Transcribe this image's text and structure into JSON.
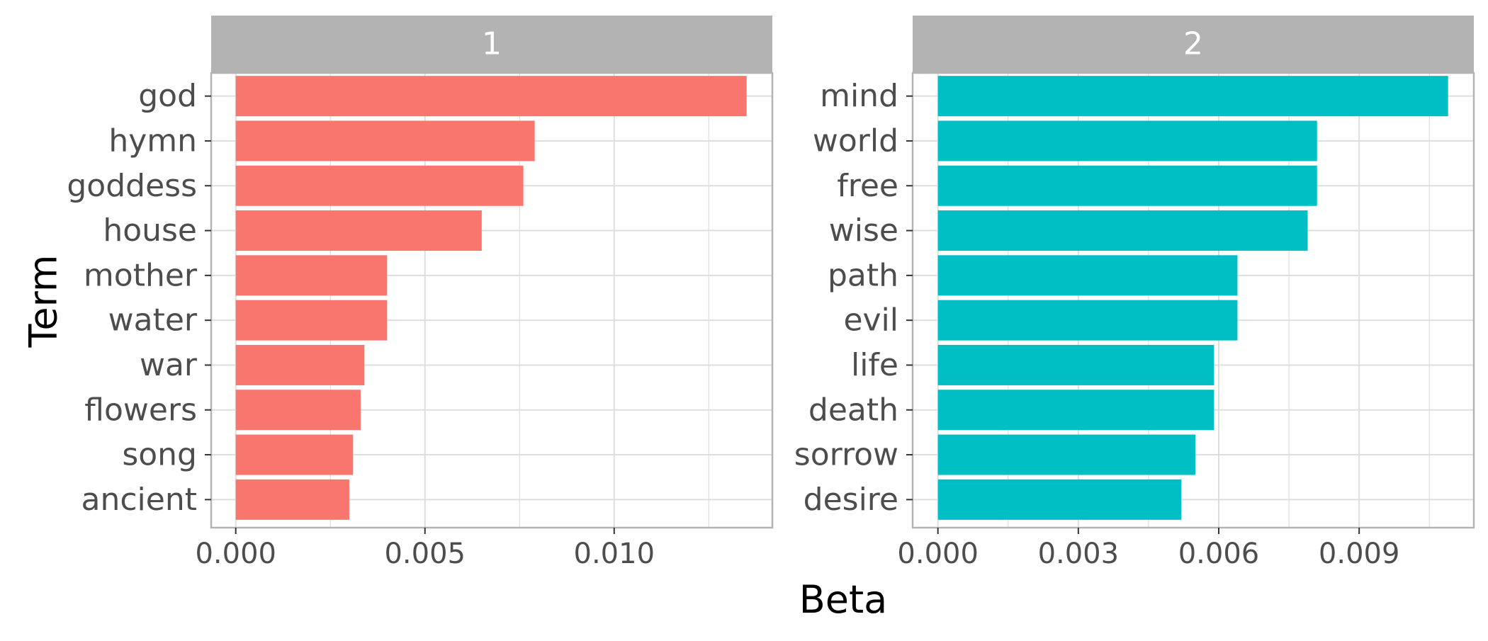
{
  "chart_data": {
    "type": "bar",
    "orientation": "horizontal",
    "facet_layout": "side-by-side",
    "xlabel": "Beta",
    "ylabel": "Term",
    "grid": true,
    "legend": "none",
    "colors": {
      "panel_1": "#F8766D",
      "panel_2": "#00BFC4",
      "strip": "#B3B3B3",
      "grid": "#DEDEDE",
      "border": "#B3B3B3"
    },
    "panels": [
      {
        "title": "1",
        "terms": [
          "god",
          "hymn",
          "goddess",
          "house",
          "mother",
          "water",
          "war",
          "flowers",
          "song",
          "ancient"
        ],
        "values": [
          0.0135,
          0.0079,
          0.0076,
          0.0065,
          0.004,
          0.004,
          0.0034,
          0.0033,
          0.0031,
          0.003
        ],
        "xlim": [
          -0.00065,
          0.01418
        ],
        "xticks": [
          0.0,
          0.005,
          0.01
        ],
        "xtick_labels": [
          "0.000",
          "0.005",
          "0.010"
        ]
      },
      {
        "title": "2",
        "terms": [
          "mind",
          "world",
          "free",
          "wise",
          "path",
          "evil",
          "life",
          "death",
          "sorrow",
          "desire"
        ],
        "values": [
          0.0109,
          0.0081,
          0.0081,
          0.0079,
          0.0064,
          0.0064,
          0.0059,
          0.0059,
          0.0055,
          0.0052
        ],
        "xlim": [
          -0.00054,
          0.01145
        ],
        "xticks": [
          0.0,
          0.003,
          0.006,
          0.009
        ],
        "xtick_labels": [
          "0.000",
          "0.003",
          "0.006",
          "0.009"
        ]
      }
    ]
  }
}
